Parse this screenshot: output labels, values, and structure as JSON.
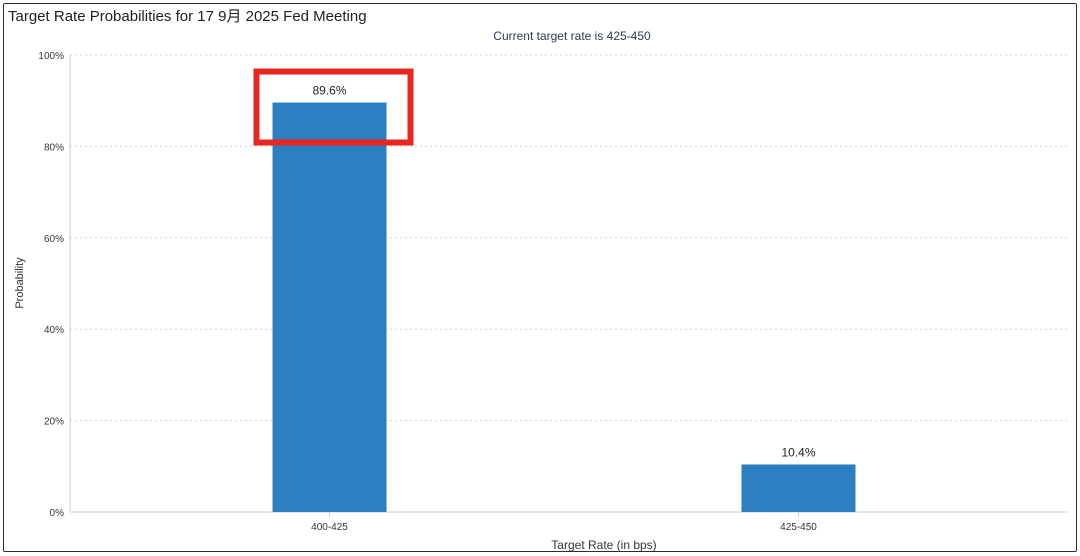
{
  "page": {
    "title": "Target Rate Probabilities for 17 9月 2025 Fed Meeting"
  },
  "chart_data": {
    "type": "bar",
    "title": "Target Rate Probabilities for 17 9月 2025 Fed Meeting",
    "subtitle": "Current target rate is 425-450",
    "xlabel": "Target Rate (in bps)",
    "ylabel": "Probability",
    "categories": [
      "400-425",
      "425-450"
    ],
    "values": [
      89.6,
      10.4
    ],
    "value_labels": [
      "89.6%",
      "10.4%"
    ],
    "ylim": [
      0,
      100
    ],
    "yticks": [
      0,
      20,
      40,
      60,
      80,
      100
    ],
    "ytick_labels": [
      "0%",
      "20%",
      "40%",
      "60%",
      "80%",
      "100%"
    ],
    "grid": true,
    "legend": "none",
    "highlight_category": "400-425",
    "colors": {
      "bar": "#2b7fc0",
      "highlight_box": "#e8261e",
      "grid": "#d4d4d4",
      "axis": "#cfcfcf",
      "text": "#333333",
      "subtitle": "#2f3a52"
    }
  }
}
